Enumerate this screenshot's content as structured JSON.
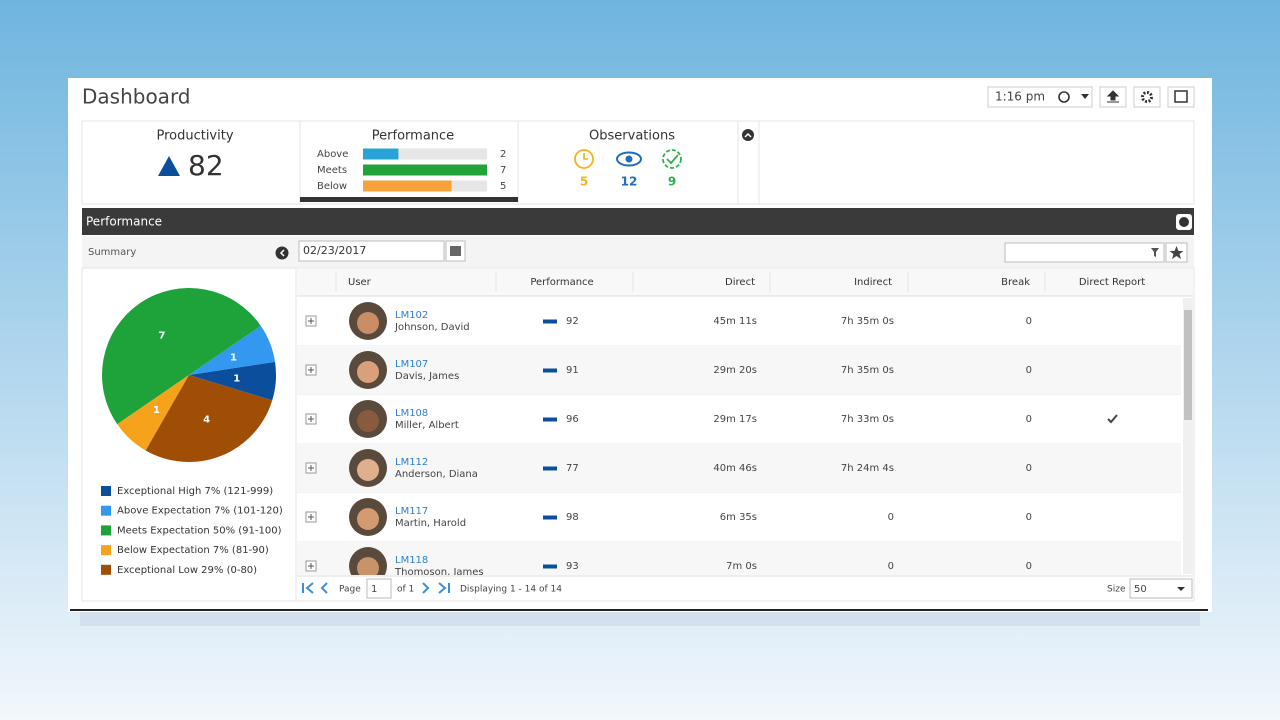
{
  "header": {
    "title": "Dashboard",
    "time": "1:16 pm"
  },
  "widgets": {
    "productivity": {
      "title": "Productivity",
      "value": 82
    },
    "observations": {
      "title": "Observations",
      "values": [
        5,
        12,
        9
      ]
    }
  },
  "chart_data": [
    {
      "type": "bar",
      "title": "Performance",
      "categories": [
        "Above",
        "Meets",
        "Below"
      ],
      "values": [
        2,
        7,
        5
      ],
      "colors": [
        "#29a3d6",
        "#22a33a",
        "#f7a23a"
      ],
      "xlim": [
        0,
        7
      ]
    },
    {
      "type": "pie",
      "categories": [
        "Exceptional High 7% (121-999)",
        "Above Expectation 7% (101-120)",
        "Meets Expectation 50% (91-100)",
        "Below Expectation 7% (81-90)",
        "Exceptional Low 29% (0-80)"
      ],
      "values": [
        1,
        1,
        7,
        1,
        4
      ],
      "colors": [
        "#0b4f9c",
        "#3399f0",
        "#1ea33a",
        "#f7a21b",
        "#a04d06"
      ]
    }
  ],
  "panel": {
    "title": "Performance",
    "summary": "Summary",
    "date": "02/23/2017"
  },
  "table": {
    "columns": [
      "User",
      "Performance",
      "Direct",
      "Indirect",
      "Break",
      "Direct Report"
    ],
    "rows": [
      {
        "id": "LM102",
        "name": "Johnson, David",
        "performance": 92,
        "direct": "45m 11s",
        "indirect": "7h 35m 0s",
        "break": 0,
        "direct_report": false
      },
      {
        "id": "LM107",
        "name": "Davis, James",
        "performance": 91,
        "direct": "29m 20s",
        "indirect": "7h 35m 0s",
        "break": 0,
        "direct_report": false
      },
      {
        "id": "LM108",
        "name": "Miller, Albert",
        "performance": 96,
        "direct": "29m 17s",
        "indirect": "7h 33m 0s",
        "break": 0,
        "direct_report": true
      },
      {
        "id": "LM112",
        "name": "Anderson, Diana",
        "performance": 77,
        "direct": "40m 46s",
        "indirect": "7h 24m 4s",
        "break": 0,
        "direct_report": false
      },
      {
        "id": "LM117",
        "name": "Martin, Harold",
        "performance": 98,
        "direct": "6m 35s",
        "indirect": "0",
        "break": 0,
        "direct_report": false
      },
      {
        "id": "LM118",
        "name": "Thomoson, James",
        "performance": 93,
        "direct": "7m 0s",
        "indirect": "0",
        "break": 0,
        "direct_report": false
      }
    ]
  },
  "pager": {
    "page_label": "Page",
    "page": 1,
    "of": "of 1",
    "displaying": "Displaying 1 - 14 of 14",
    "size_label": "Size",
    "size": 50
  }
}
